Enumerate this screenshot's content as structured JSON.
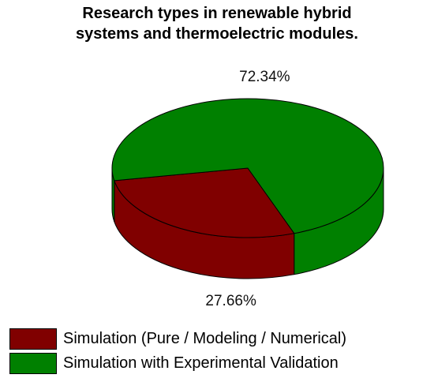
{
  "chart_data": {
    "type": "pie",
    "title": [
      "Research types in renewable hybrid",
      "systems and thermoelectric modules."
    ],
    "categories": [
      "Simulation (Pure / Modeling / Numerical)",
      "Simulation with Experimental Validation"
    ],
    "values": [
      27.66,
      72.34
    ],
    "data_labels": [
      "27.66%",
      "72.34%"
    ],
    "colors": [
      "#800000",
      "#008000"
    ],
    "legend_position": "bottom-left",
    "style": "3d"
  }
}
